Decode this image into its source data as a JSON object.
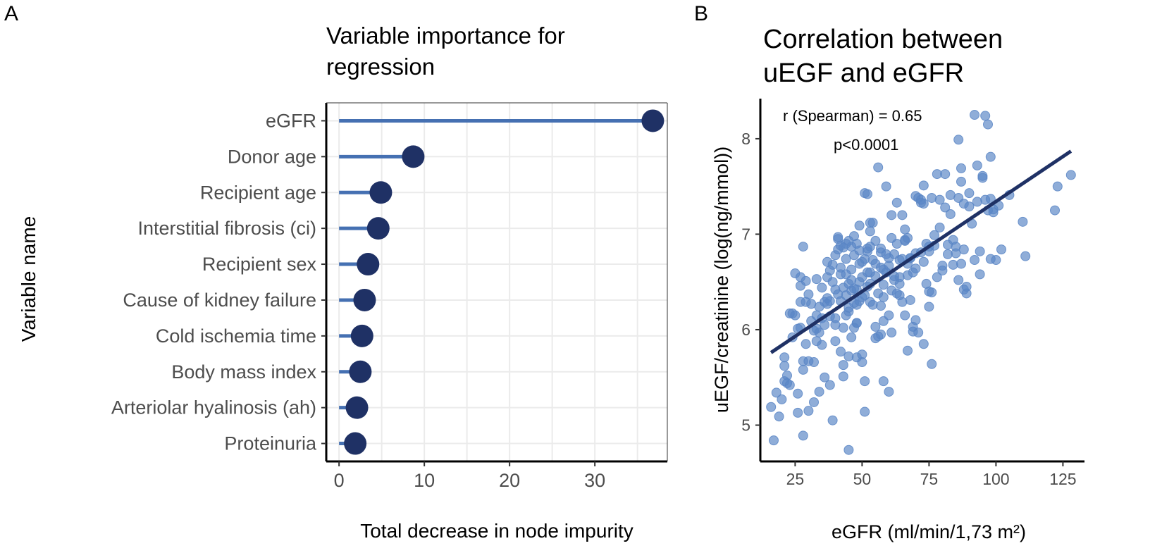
{
  "chart_data": [
    {
      "panel": "A",
      "type": "lollipop",
      "title": "Variable importance for regression",
      "title_lines": [
        "Variable importance for",
        "regression"
      ],
      "xlabel": "Total decrease in node impurity",
      "ylabel": "Variable name",
      "xlim": [
        -1.5,
        38.5
      ],
      "xticks": [
        0,
        10,
        20,
        30
      ],
      "grid": true,
      "categories": [
        "eGFR",
        "Donor age",
        "Recipient age",
        "Interstitial fibrosis (ci)",
        "Recipient sex",
        "Cause of kidney failure",
        "Cold ischemia time",
        "Body mass index",
        "Arteriolar hyalinosis (ah)",
        "Proteinuria"
      ],
      "values": [
        36.8,
        8.7,
        4.9,
        4.6,
        3.4,
        3.0,
        2.7,
        2.5,
        2.1,
        1.9
      ],
      "colors": {
        "stem": "#4570b2",
        "dot": "#1f3165",
        "grid": "#ebebeb"
      }
    },
    {
      "panel": "B",
      "type": "scatter",
      "title": "Correlation between uEGF and eGFR",
      "title_lines": [
        "Correlation between",
        "uEGF and eGFR"
      ],
      "xlabel": "eGFR (ml/min/1,73 m²)",
      "ylabel": "uEGF/creatinine (log(ng/mmol))",
      "xlim": [
        12,
        132
      ],
      "ylim": [
        4.62,
        8.42
      ],
      "xticks": [
        25,
        50,
        75,
        100,
        125
      ],
      "yticks": [
        5,
        6,
        7,
        8
      ],
      "grid": false,
      "annotations": [
        "r (Spearman) = 0.65",
        "p<0.0001"
      ],
      "regression_line": {
        "x": [
          16,
          128
        ],
        "y": [
          5.76,
          7.87
        ]
      },
      "colors": {
        "point": "#5a86c5",
        "line": "#1f3165"
      },
      "points": [
        [
          16,
          5.19
        ],
        [
          17,
          4.84
        ],
        [
          18,
          5.34
        ],
        [
          19,
          5.09
        ],
        [
          20,
          5.27
        ],
        [
          21,
          5.46
        ],
        [
          21,
          5.62
        ],
        [
          21,
          5.71
        ],
        [
          22,
          5.52
        ],
        [
          22,
          5.44
        ],
        [
          23,
          5.42
        ],
        [
          23,
          6.17
        ],
        [
          24,
          6.17
        ],
        [
          25,
          6.15
        ],
        [
          25,
          6.59
        ],
        [
          26,
          5.13
        ],
        [
          26,
          5.33
        ],
        [
          27,
          6.29
        ],
        [
          27,
          6.46
        ],
        [
          27,
          6.55
        ],
        [
          27,
          6.02
        ],
        [
          28,
          4.89
        ],
        [
          28,
          5.58
        ],
        [
          28,
          5.67
        ],
        [
          28,
          6.87
        ],
        [
          29,
          6.29
        ],
        [
          29,
          6.51
        ],
        [
          30,
          5.15
        ],
        [
          30,
          5.67
        ],
        [
          31,
          6.27
        ],
        [
          31,
          6.09
        ],
        [
          32,
          5.24
        ],
        [
          32,
          5.66
        ],
        [
          33,
          6.15
        ],
        [
          33,
          5.88
        ],
        [
          33,
          6.01
        ],
        [
          34,
          5.35
        ],
        [
          34,
          5.97
        ],
        [
          35,
          5.84
        ],
        [
          35,
          6.12
        ],
        [
          35,
          6.44
        ],
        [
          36,
          5.5
        ],
        [
          36,
          6.29
        ],
        [
          37,
          6.33
        ],
        [
          37,
          6.27
        ],
        [
          37,
          6.55
        ],
        [
          38,
          6.14
        ],
        [
          38,
          5.42
        ],
        [
          38,
          6.62
        ],
        [
          39,
          5.05
        ],
        [
          39,
          6.5
        ],
        [
          39,
          6.68
        ],
        [
          40,
          6.42
        ],
        [
          40,
          5.88
        ],
        [
          40,
          6.12
        ],
        [
          40,
          6.05
        ],
        [
          41,
          6.84
        ],
        [
          41,
          6.95
        ],
        [
          41,
          6.97
        ],
        [
          42,
          6.88
        ],
        [
          42,
          5.77
        ],
        [
          42,
          6.58
        ],
        [
          42,
          6.3
        ],
        [
          43,
          5.51
        ],
        [
          43,
          5.63
        ],
        [
          43,
          6.02
        ],
        [
          43,
          6.44
        ],
        [
          43,
          6.86
        ],
        [
          44,
          6.9
        ],
        [
          44,
          6.15
        ],
        [
          44,
          6.36
        ],
        [
          44,
          6.74
        ],
        [
          45,
          4.74
        ],
        [
          45,
          5.72
        ],
        [
          45,
          6.19
        ],
        [
          45,
          6.23
        ],
        [
          45,
          6.48
        ],
        [
          45,
          6.93
        ],
        [
          46,
          6.87
        ],
        [
          46,
          6.52
        ],
        [
          46,
          5.92
        ],
        [
          46,
          6.63
        ],
        [
          47,
          6.02
        ],
        [
          47,
          6.28
        ],
        [
          47,
          6.98
        ],
        [
          47,
          6.43
        ],
        [
          48,
          5.71
        ],
        [
          48,
          6.07
        ],
        [
          48,
          6.07
        ],
        [
          48,
          6.26
        ],
        [
          48,
          6.42
        ],
        [
          48,
          6.9
        ],
        [
          49,
          6.69
        ],
        [
          49,
          6.3
        ],
        [
          49,
          6.83
        ],
        [
          49,
          7.09
        ],
        [
          50,
          6.55
        ],
        [
          50,
          6.34
        ],
        [
          50,
          5.66
        ],
        [
          50,
          5.74
        ],
        [
          50,
          6.71
        ],
        [
          51,
          5.14
        ],
        [
          51,
          5.46
        ],
        [
          51,
          6.36
        ],
        [
          51,
          6.74
        ],
        [
          51,
          7.43
        ],
        [
          52,
          6.85
        ],
        [
          52,
          6.45
        ],
        [
          52,
          7.42
        ],
        [
          52,
          6.82
        ],
        [
          53,
          6.6
        ],
        [
          53,
          6.48
        ],
        [
          53,
          6.29
        ],
        [
          53,
          7.03
        ],
        [
          53,
          7.12
        ],
        [
          54,
          7.12
        ],
        [
          54,
          6.73
        ],
        [
          54,
          6.26
        ],
        [
          55,
          6.93
        ],
        [
          55,
          6.56
        ],
        [
          55,
          5.91
        ],
        [
          55,
          6.03
        ],
        [
          56,
          7.7
        ],
        [
          56,
          6.38
        ],
        [
          56,
          5.93
        ],
        [
          57,
          6.85
        ],
        [
          57,
          6.65
        ],
        [
          57,
          6.81
        ],
        [
          57,
          5.95
        ],
        [
          58,
          5.46
        ],
        [
          58,
          6.63
        ],
        [
          58,
          6.47
        ],
        [
          58,
          6.09
        ],
        [
          59,
          7.5
        ],
        [
          59,
          6.6
        ],
        [
          59,
          6.79
        ],
        [
          60,
          5.35
        ],
        [
          60,
          6.75
        ],
        [
          60,
          6.67
        ],
        [
          61,
          6.96
        ],
        [
          61,
          5.97
        ],
        [
          61,
          7.2
        ],
        [
          62,
          6.56
        ],
        [
          62,
          6.79
        ],
        [
          62,
          6.52
        ],
        [
          63,
          7.33
        ],
        [
          63,
          6.9
        ],
        [
          63,
          6.38
        ],
        [
          64,
          6.36
        ],
        [
          64,
          6.73
        ],
        [
          64,
          6.55
        ],
        [
          65,
          6.29
        ],
        [
          65,
          7.2
        ],
        [
          65,
          6.74
        ],
        [
          66,
          6.15
        ],
        [
          66,
          6.93
        ],
        [
          66,
          6.94
        ],
        [
          66,
          7.05
        ],
        [
          67,
          6.96
        ],
        [
          67,
          6.69
        ],
        [
          67,
          5.78
        ],
        [
          68,
          6.31
        ],
        [
          68,
          6.75
        ],
        [
          68,
          6.75
        ],
        [
          69,
          6.6
        ],
        [
          69,
          5.98
        ],
        [
          69,
          6.03
        ],
        [
          70,
          7.4
        ],
        [
          70,
          6.8
        ],
        [
          70,
          6.1
        ],
        [
          71,
          7.38
        ],
        [
          71,
          5.97
        ],
        [
          72,
          6.81
        ],
        [
          72,
          7.36
        ],
        [
          72,
          7.33
        ],
        [
          73,
          5.85
        ],
        [
          73,
          7.32
        ],
        [
          73,
          6.71
        ],
        [
          73,
          7.51
        ],
        [
          74,
          6.9
        ],
        [
          74,
          6.48
        ],
        [
          75,
          6.87
        ],
        [
          75,
          6.24
        ],
        [
          75,
          6.4
        ],
        [
          75,
          6.82
        ],
        [
          76,
          7.38
        ],
        [
          76,
          5.64
        ],
        [
          76,
          6.39
        ],
        [
          77,
          6.88
        ],
        [
          77,
          6.99
        ],
        [
          78,
          7.63
        ],
        [
          78,
          6.55
        ],
        [
          79,
          7.07
        ],
        [
          79,
          7.36
        ],
        [
          80,
          6.67
        ],
        [
          80,
          6.62
        ],
        [
          81,
          7.63
        ],
        [
          81,
          7.28
        ],
        [
          82,
          6.79
        ],
        [
          82,
          6.89
        ],
        [
          83,
          7.21
        ],
        [
          83,
          7.41
        ],
        [
          84,
          6.94
        ],
        [
          84,
          6.68
        ],
        [
          85,
          6.87
        ],
        [
          85,
          6.8
        ],
        [
          86,
          6.52
        ],
        [
          86,
          7.99
        ],
        [
          86,
          7.38
        ],
        [
          87,
          7.69
        ],
        [
          87,
          7.55
        ],
        [
          87,
          6.69
        ],
        [
          88,
          6.84
        ],
        [
          88,
          6.42
        ],
        [
          88,
          7.32
        ],
        [
          89,
          6.45
        ],
        [
          89,
          6.38
        ],
        [
          90,
          7.43
        ],
        [
          90,
          7.29
        ],
        [
          91,
          7.11
        ],
        [
          92,
          6.73
        ],
        [
          92,
          8.25
        ],
        [
          93,
          7.72
        ],
        [
          93,
          7.34
        ],
        [
          94,
          6.58
        ],
        [
          94,
          6.82
        ],
        [
          95,
          7.61
        ],
        [
          95,
          7.59
        ],
        [
          96,
          8.24
        ],
        [
          96,
          7.36
        ],
        [
          97,
          8.15
        ],
        [
          97,
          7.25
        ],
        [
          98,
          7.81
        ],
        [
          98,
          6.74
        ],
        [
          98,
          7.37
        ],
        [
          99,
          7.23
        ],
        [
          99,
          7.26
        ],
        [
          100,
          6.73
        ],
        [
          101,
          7.3
        ],
        [
          102,
          6.84
        ],
        [
          105,
          7.41
        ],
        [
          110,
          7.13
        ],
        [
          111,
          6.77
        ],
        [
          122,
          7.25
        ],
        [
          123,
          7.5
        ],
        [
          128,
          7.62
        ],
        [
          34,
          6.24
        ],
        [
          36,
          6.05
        ],
        [
          38,
          6.3
        ],
        [
          41,
          6.37
        ],
        [
          44,
          6.58
        ],
        [
          46,
          6.41
        ],
        [
          49,
          6.5
        ],
        [
          52,
          6.6
        ],
        [
          55,
          6.69
        ],
        [
          58,
          6.34
        ],
        [
          61,
          6.41
        ],
        [
          64,
          6.48
        ],
        [
          67,
          6.57
        ],
        [
          70,
          6.64
        ],
        [
          30,
          6.37
        ],
        [
          32,
          5.99
        ],
        [
          26,
          6.01
        ],
        [
          24,
          5.92
        ],
        [
          29,
          5.85
        ],
        [
          33,
          6.53
        ],
        [
          37,
          6.71
        ],
        [
          40,
          6.78
        ],
        [
          42,
          6.65
        ],
        [
          47,
          6.78
        ],
        [
          53,
          6.87
        ],
        [
          57,
          6.25
        ],
        [
          60,
          6.15
        ]
      ]
    }
  ],
  "labels": {
    "panel_a": "A",
    "panel_b": "B"
  }
}
